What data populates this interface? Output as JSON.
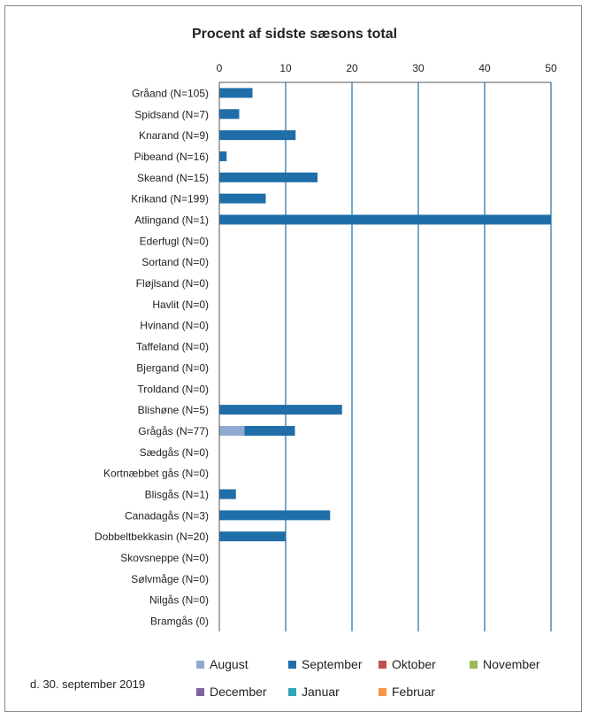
{
  "chart_data": {
    "type": "bar",
    "orientation": "horizontal",
    "stacked": true,
    "title": "Procent af sidste sæsons total",
    "xlim": [
      0,
      50
    ],
    "x_ticks": [
      "0",
      "10",
      "20",
      "30",
      "40",
      "50"
    ],
    "x_tick_values": [
      0,
      10,
      20,
      30,
      40,
      50
    ],
    "x_axis_position": "top",
    "grid": "vertical",
    "categories": [
      "Gråand (N=105)",
      "Spidsand (N=7)",
      "Knarand (N=9)",
      "Pibeand (N=16)",
      "Skeand (N=15)",
      "Krikand (N=199)",
      "Atlingand (N=1)",
      "Ederfugl (N=0)",
      "Sortand (N=0)",
      "Fløjlsand (N=0)",
      "Havlit (N=0)",
      "Hvinand (N=0)",
      "Taffeland (N=0)",
      "Bjergand (N=0)",
      "Troldand (N=0)",
      "Blishøne (N=5)",
      "Grågås (N=77)",
      "Sædgås (N=0)",
      "Kortnæbbet gås (N=0)",
      "Blisgås (N=1)",
      "Canadagås (N=3)",
      "Dobbeltbekkasin (N=20)",
      "Skovsneppe (N=0)",
      "Sølvmåge (N=0)",
      "Nilgås (N=0)",
      "Bramgås (0)"
    ],
    "series": [
      {
        "name": "August",
        "color": "#8faad0",
        "values": [
          0,
          0,
          0,
          0,
          0,
          0,
          0,
          0,
          0,
          0,
          0,
          0,
          0,
          0,
          0,
          0,
          3.8,
          0,
          0,
          0,
          0,
          0,
          0,
          0,
          0,
          0
        ]
      },
      {
        "name": "September",
        "color": "#1f6ea8",
        "values": [
          5,
          3,
          11.5,
          1.1,
          14.8,
          7,
          50,
          0,
          0,
          0,
          0,
          0,
          0,
          0,
          0,
          18.5,
          7.6,
          0,
          0,
          2.5,
          16.7,
          10,
          0,
          0,
          0,
          0
        ]
      },
      {
        "name": "Oktober",
        "color": "#c0504d",
        "values": [
          0,
          0,
          0,
          0,
          0,
          0,
          0,
          0,
          0,
          0,
          0,
          0,
          0,
          0,
          0,
          0,
          0,
          0,
          0,
          0,
          0,
          0,
          0,
          0,
          0,
          0
        ]
      },
      {
        "name": "November",
        "color": "#9bbb59",
        "values": [
          0,
          0,
          0,
          0,
          0,
          0,
          0,
          0,
          0,
          0,
          0,
          0,
          0,
          0,
          0,
          0,
          0,
          0,
          0,
          0,
          0,
          0,
          0,
          0,
          0,
          0
        ]
      },
      {
        "name": "December",
        "color": "#8064a2",
        "values": [
          0,
          0,
          0,
          0,
          0,
          0,
          0,
          0,
          0,
          0,
          0,
          0,
          0,
          0,
          0,
          0,
          0,
          0,
          0,
          0,
          0,
          0,
          0,
          0,
          0,
          0
        ]
      },
      {
        "name": "Januar",
        "color": "#31a6b8",
        "values": [
          0,
          0,
          0,
          0,
          0,
          0,
          0,
          0,
          0,
          0,
          0,
          0,
          0,
          0,
          0,
          0,
          0,
          0,
          0,
          0,
          0,
          0,
          0,
          0,
          0,
          0
        ]
      },
      {
        "name": "Februar",
        "color": "#f79646",
        "values": [
          0,
          0,
          0,
          0,
          0,
          0,
          0,
          0,
          0,
          0,
          0,
          0,
          0,
          0,
          0,
          0,
          0,
          0,
          0,
          0,
          0,
          0,
          0,
          0,
          0,
          0
        ]
      }
    ],
    "legend_position": "bottom"
  },
  "footer": {
    "date_text": "d. 30. september  2019"
  }
}
